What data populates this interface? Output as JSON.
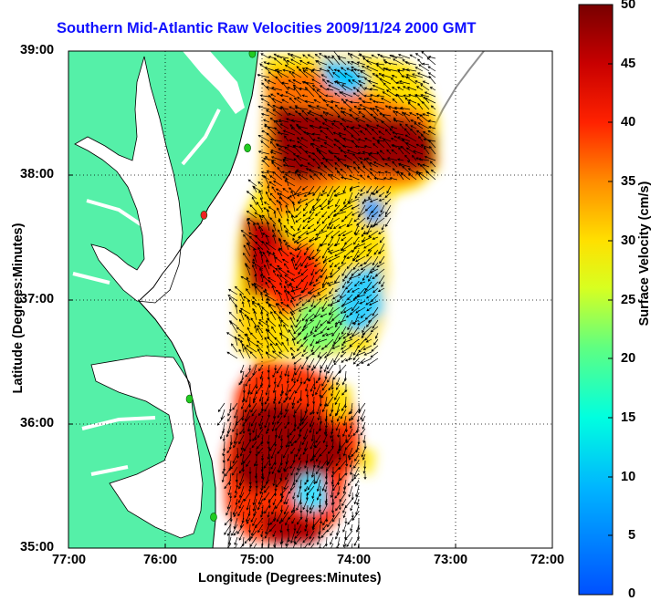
{
  "title": "Southern Mid-Atlantic Raw Velocities 2009/11/24 2000 GMT",
  "xlabel": "Longitude (Degrees:Minutes)",
  "ylabel": "Latitude (Degrees:Minutes)",
  "x_ticks": [
    "77:00",
    "76:00",
    "75:00",
    "74:00",
    "73:00",
    "72:00"
  ],
  "y_ticks": [
    "39:00",
    "38:00",
    "37:00",
    "36:00",
    "35:00"
  ],
  "colorbar": {
    "label": "Surface Velocity (cm/s)",
    "ticks": [
      "50",
      "45",
      "40",
      "35",
      "30",
      "25",
      "20",
      "15",
      "10",
      "5",
      "0"
    ],
    "range": [
      0,
      50
    ],
    "units": "cm/s"
  },
  "map": {
    "lon_range": [
      -77,
      -72
    ],
    "lat_range": [
      35,
      39
    ],
    "land_color": "#55f0a8",
    "water_color": "#ffffff",
    "grid": true,
    "grid_style": "dotted"
  },
  "stations": [
    {
      "lon": -75.1,
      "lat": 38.98,
      "color": "#22cc22"
    },
    {
      "lon": -75.15,
      "lat": 38.22,
      "color": "#22cc22"
    },
    {
      "lon": -75.6,
      "lat": 37.68,
      "color": "#ee2222"
    },
    {
      "lon": -75.75,
      "lat": 36.2,
      "color": "#22cc22"
    },
    {
      "lon": -75.5,
      "lat": 35.25,
      "color": "#22cc22"
    }
  ],
  "colors": {
    "title": "#1010ff",
    "vectors": "#000000",
    "bathymetry": "#909090"
  }
}
